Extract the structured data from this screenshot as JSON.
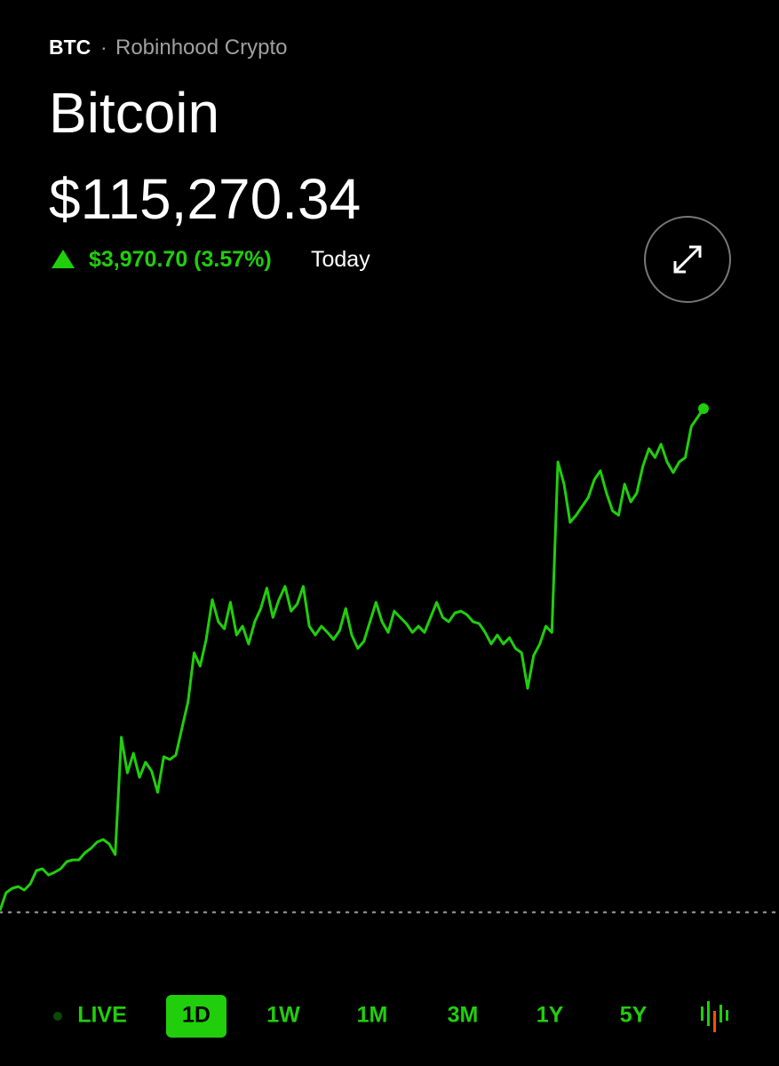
{
  "header": {
    "ticker": "BTC",
    "separator": "·",
    "source": "Robinhood Crypto",
    "name": "Bitcoin",
    "price": "$115,270.34",
    "change": "$3,970.70 (3.57%)",
    "period": "Today"
  },
  "chart_data": {
    "type": "line",
    "color": "#21ce0c",
    "baseline": 111299.64,
    "ylim": [
      111000,
      115500
    ],
    "values": [
      111314,
      111454,
      111489,
      111503,
      111475,
      111524,
      111629,
      111643,
      111594,
      111615,
      111643,
      111699,
      111713,
      111713,
      111769,
      111804,
      111853,
      111874,
      111839,
      111755,
      112680,
      112399,
      112554,
      112364,
      112483,
      112413,
      112245,
      112526,
      112504,
      112540,
      112750,
      112960,
      113345,
      113240,
      113450,
      113765,
      113590,
      113534,
      113744,
      113485,
      113555,
      113415,
      113590,
      113695,
      113856,
      113625,
      113765,
      113870,
      113674,
      113730,
      113870,
      113555,
      113485,
      113555,
      113506,
      113450,
      113520,
      113695,
      113485,
      113380,
      113436,
      113590,
      113744,
      113590,
      113506,
      113674,
      113625,
      113576,
      113506,
      113555,
      113506,
      113625,
      113744,
      113625,
      113590,
      113660,
      113674,
      113646,
      113590,
      113576,
      113506,
      113415,
      113485,
      113415,
      113464,
      113380,
      113345,
      113065,
      113324,
      113415,
      113555,
      113506,
      114850,
      114675,
      114374,
      114430,
      114500,
      114570,
      114710,
      114780,
      114605,
      114465,
      114430,
      114675,
      114535,
      114605,
      114815,
      114955,
      114885,
      114990,
      114850,
      114766,
      114850,
      114885,
      115130,
      115200,
      115270.34
    ]
  },
  "ranges": {
    "items": [
      "LIVE",
      "1D",
      "1W",
      "1M",
      "3M",
      "1Y",
      "5Y"
    ],
    "selected": 1
  }
}
